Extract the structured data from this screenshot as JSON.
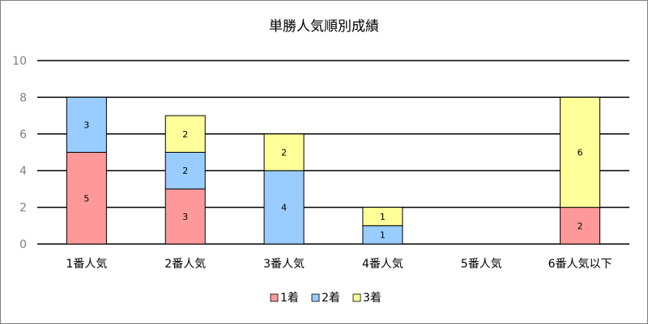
{
  "chart_data": {
    "type": "bar",
    "stacked": true,
    "title": "単勝人気順別成績",
    "xlabel": "",
    "ylabel": "",
    "categories": [
      "1番人気",
      "2番人気",
      "3番人気",
      "4番人気",
      "5番人気",
      "6番人気以下"
    ],
    "ylim": [
      0,
      10
    ],
    "yticks": [
      0,
      2,
      4,
      6,
      8,
      10
    ],
    "grid": true,
    "legend_position": "bottom",
    "series": [
      {
        "name": "1着",
        "color": "#ff9999",
        "values": [
          5,
          3,
          0,
          0,
          0,
          2
        ]
      },
      {
        "name": "2着",
        "color": "#99ccff",
        "values": [
          3,
          2,
          4,
          1,
          0,
          0
        ]
      },
      {
        "name": "3着",
        "color": "#ffff99",
        "values": [
          0,
          2,
          2,
          1,
          0,
          6
        ]
      }
    ]
  }
}
